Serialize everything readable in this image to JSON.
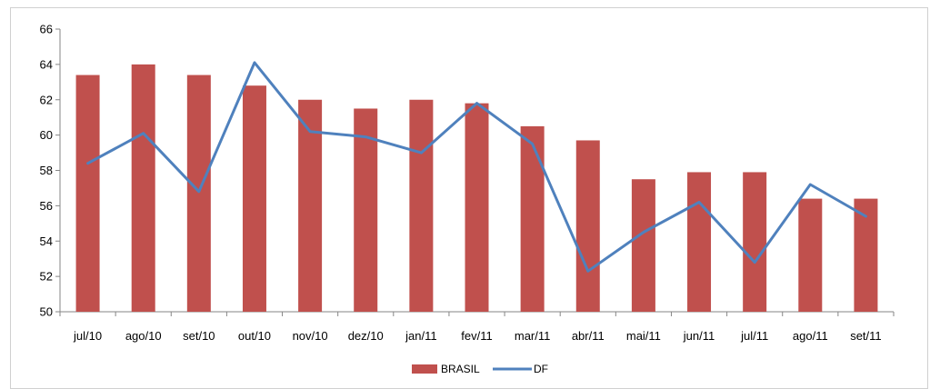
{
  "chart_data": {
    "type": "bar",
    "categories": [
      "jul/10",
      "ago/10",
      "set/10",
      "out/10",
      "nov/10",
      "dez/10",
      "jan/11",
      "fev/11",
      "mar/11",
      "abr/11",
      "mai/11",
      "jun/11",
      "jul/11",
      "ago/11",
      "set/11"
    ],
    "series": [
      {
        "name": "BRASIL",
        "kind": "bar",
        "color": "#c0504d",
        "values": [
          63.4,
          64.0,
          63.4,
          62.8,
          62.0,
          61.5,
          62.0,
          61.8,
          60.5,
          59.7,
          57.5,
          57.9,
          57.9,
          56.4,
          56.4
        ]
      },
      {
        "name": "DF",
        "kind": "line",
        "color": "#4f81bd",
        "values": [
          58.4,
          60.1,
          56.8,
          64.1,
          60.2,
          59.9,
          59.0,
          61.8,
          59.5,
          52.3,
          54.5,
          56.2,
          52.8,
          57.2,
          55.4
        ]
      }
    ],
    "ylim": [
      50,
      66
    ],
    "yticks": [
      50,
      52,
      54,
      56,
      58,
      60,
      62,
      64,
      66
    ],
    "grid": false,
    "legend": "bottom-center"
  }
}
